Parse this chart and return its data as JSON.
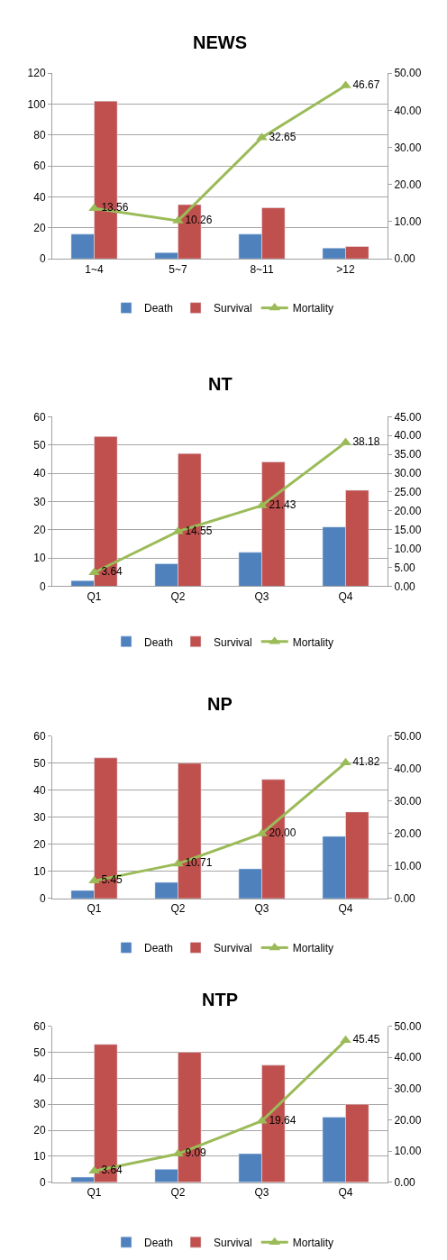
{
  "chart_data": [
    {
      "type": "bar",
      "title": "NEWS",
      "categories": [
        "1~4",
        "5~7",
        "8~11",
        ">12"
      ],
      "ylim": [
        0,
        120
      ],
      "yticks": [
        0,
        20,
        40,
        60,
        80,
        100,
        120
      ],
      "y2lim": [
        0,
        50
      ],
      "y2ticks": [
        "0.00",
        "10.00",
        "20.00",
        "30.00",
        "40.00",
        "50.00"
      ],
      "grid": "y",
      "legend": "bottom",
      "series": [
        {
          "name": "Death",
          "color": "#4f81bd",
          "values": [
            16,
            4,
            16,
            7
          ]
        },
        {
          "name": "Survival",
          "color": "#c0504d",
          "values": [
            102,
            35,
            33,
            8
          ]
        },
        {
          "name": "Mortality",
          "type": "line",
          "axis": "y2",
          "marker": "triangle",
          "color": "#9bbb59",
          "values": [
            13.56,
            10.26,
            32.65,
            46.67
          ],
          "value_labels": [
            "13.56",
            "10.26",
            "32.65",
            "46.67"
          ]
        }
      ]
    },
    {
      "type": "bar",
      "title": "NT",
      "categories": [
        "Q1",
        "Q2",
        "Q3",
        "Q4"
      ],
      "ylim": [
        0,
        60
      ],
      "yticks": [
        0,
        10,
        20,
        30,
        40,
        50,
        60
      ],
      "y2lim": [
        0,
        45
      ],
      "y2ticks": [
        "0.00",
        "5.00",
        "10.00",
        "15.00",
        "20.00",
        "25.00",
        "30.00",
        "35.00",
        "40.00",
        "45.00"
      ],
      "grid": "y",
      "legend": "bottom",
      "series": [
        {
          "name": "Death",
          "color": "#4f81bd",
          "values": [
            2,
            8,
            12,
            21
          ]
        },
        {
          "name": "Survival",
          "color": "#c0504d",
          "values": [
            53,
            47,
            44,
            34
          ]
        },
        {
          "name": "Mortality",
          "type": "line",
          "axis": "y2",
          "marker": "triangle",
          "color": "#9bbb59",
          "values": [
            3.64,
            14.55,
            21.43,
            38.18
          ],
          "value_labels": [
            "3.64",
            "14.55",
            "21.43",
            "38.18"
          ]
        }
      ]
    },
    {
      "type": "bar",
      "title": "NP",
      "categories": [
        "Q1",
        "Q2",
        "Q3",
        "Q4"
      ],
      "ylim": [
        0,
        60
      ],
      "yticks": [
        0,
        10,
        20,
        30,
        40,
        50,
        60
      ],
      "y2lim": [
        0,
        50
      ],
      "y2ticks": [
        "0.00",
        "10.00",
        "20.00",
        "30.00",
        "40.00",
        "50.00"
      ],
      "grid": "y",
      "legend": "bottom",
      "series": [
        {
          "name": "Death",
          "color": "#4f81bd",
          "values": [
            3,
            6,
            11,
            23
          ]
        },
        {
          "name": "Survival",
          "color": "#c0504d",
          "values": [
            52,
            50,
            44,
            32
          ]
        },
        {
          "name": "Mortality",
          "type": "line",
          "axis": "y2",
          "marker": "triangle",
          "color": "#9bbb59",
          "values": [
            5.45,
            10.71,
            20.0,
            41.82
          ],
          "value_labels": [
            "5.45",
            "10.71",
            "20.00",
            "41.82"
          ]
        }
      ]
    },
    {
      "type": "bar",
      "title": "NTP",
      "categories": [
        "Q1",
        "Q2",
        "Q3",
        "Q4"
      ],
      "ylim": [
        0,
        60
      ],
      "yticks": [
        0,
        10,
        20,
        30,
        40,
        50,
        60
      ],
      "y2lim": [
        0,
        50
      ],
      "y2ticks": [
        "0.00",
        "10.00",
        "20.00",
        "30.00",
        "40.00",
        "50.00"
      ],
      "grid": "y",
      "legend": "bottom",
      "series": [
        {
          "name": "Death",
          "color": "#4f81bd",
          "values": [
            2,
            5,
            11,
            25
          ]
        },
        {
          "name": "Survival",
          "color": "#c0504d",
          "values": [
            53,
            50,
            45,
            30
          ]
        },
        {
          "name": "Mortality",
          "type": "line",
          "axis": "y2",
          "marker": "triangle",
          "color": "#9bbb59",
          "values": [
            3.64,
            9.09,
            19.64,
            45.45
          ],
          "value_labels": [
            "3.64",
            "9.09",
            "19.64",
            "45.45"
          ]
        }
      ]
    }
  ]
}
